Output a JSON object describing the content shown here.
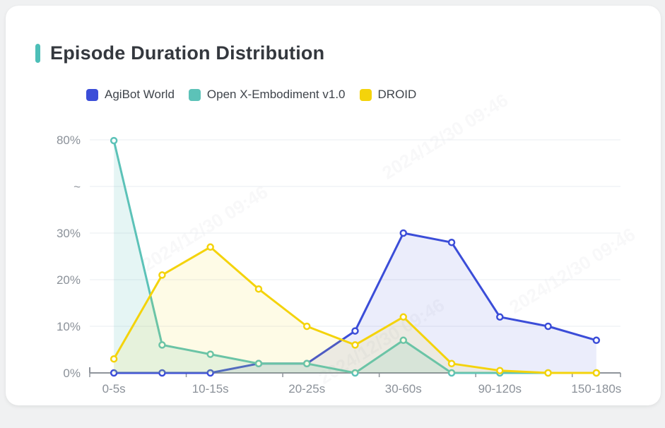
{
  "header": {
    "title": "Episode Duration Distribution",
    "accent_color": "#4dbfb8"
  },
  "legend": [
    {
      "label": "AgiBot World",
      "color": "#3b4dd8"
    },
    {
      "label": "Open X-Embodiment v1.0",
      "color": "#5cc2b8"
    },
    {
      "label": "DROID",
      "color": "#f4d30b"
    }
  ],
  "watermark": {
    "text": "2024/12/30 09:46"
  },
  "chart_data": {
    "type": "line",
    "title": "Episode Duration Distribution",
    "categories": [
      "0-5s",
      "",
      "10-15s",
      "",
      "20-25s",
      "",
      "30-60s",
      "",
      "90-120s",
      "",
      "150-180s"
    ],
    "series": [
      {
        "name": "AgiBot World",
        "color": "#3b4dd8",
        "fill": "rgba(59,77,216,0.10)",
        "values": [
          0,
          0,
          0,
          2,
          2,
          9,
          30,
          28,
          12,
          10,
          7
        ]
      },
      {
        "name": "Open X-Embodiment v1.0",
        "color": "#5cc2b8",
        "fill": "rgba(92,194,184,0.16)",
        "values": [
          79.6,
          6,
          4,
          2,
          2,
          0,
          7,
          0,
          0,
          0,
          0
        ]
      },
      {
        "name": "DROID",
        "color": "#f4d30b",
        "fill": "rgba(244,211,11,0.10)",
        "values": [
          3,
          21,
          27,
          18,
          10,
          6,
          12,
          2,
          0.5,
          0,
          0
        ]
      }
    ],
    "y_tick_labels": [
      "0%",
      "10%",
      "20%",
      "30%",
      "~",
      "80%"
    ],
    "y_tick_values": [
      0,
      10,
      20,
      30,
      null,
      80
    ],
    "axis_break": {
      "between": [
        30,
        80
      ],
      "symbol": "~"
    },
    "xlabel": "",
    "ylabel": "",
    "grid": true,
    "legend_position": "top",
    "colors": {
      "grid_line": "#e9ecf1",
      "axis_line": "#8f949b",
      "axis_text": "#8b9199"
    }
  }
}
